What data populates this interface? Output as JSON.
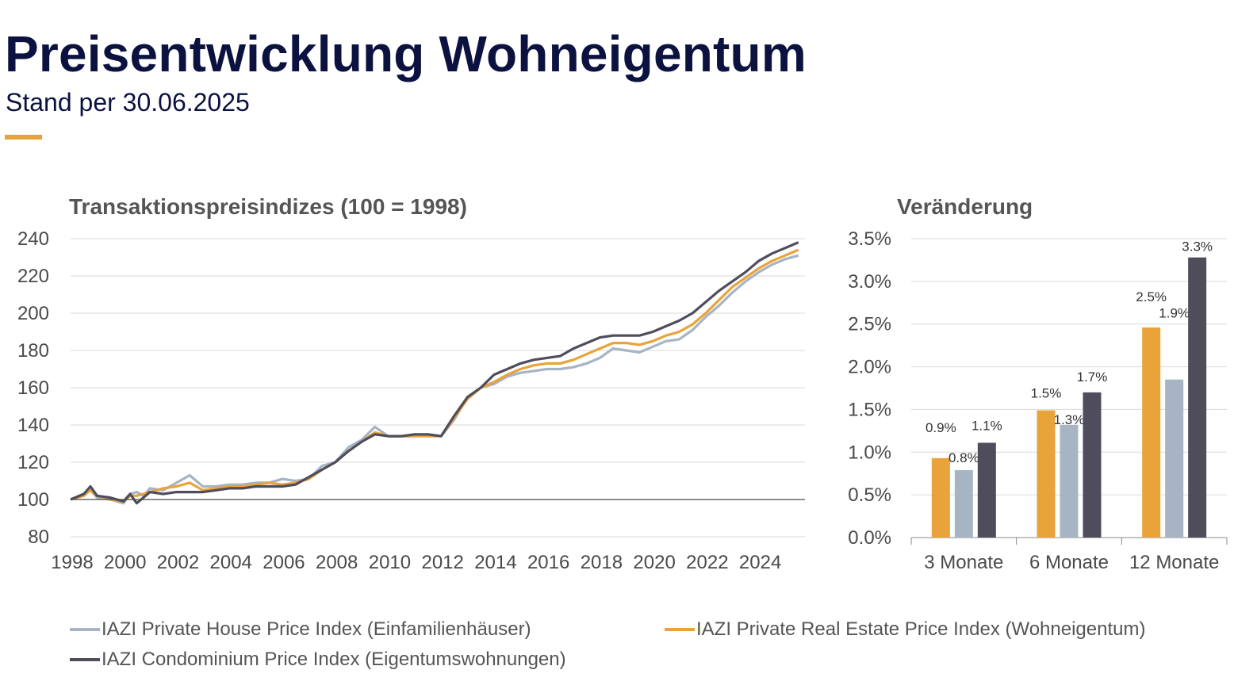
{
  "header": {
    "title": "Preisentwicklung Wohneigentum",
    "subtitle": "Stand per 30.06.2025",
    "accent_color": "#e7a23a"
  },
  "legend": [
    {
      "label": "IAZI Private House Price Index (Einfamilienhäuser)",
      "color": "#a6b4c4"
    },
    {
      "label": "IAZI Private Real Estate Price Index (Wohneigentum)",
      "color": "#e8a33b"
    },
    {
      "label": "IAZI Condominium Price Index (Eigentumswohnungen)",
      "color": "#4f4d5c"
    }
  ],
  "chart_data": [
    {
      "type": "line",
      "title": "Transaktionspreisindizes (100 = 1998)",
      "xlabel": "",
      "ylabel": "",
      "xlim": [
        1998,
        2025.75
      ],
      "ylim": [
        80,
        240
      ],
      "yticks": [
        80,
        100,
        120,
        140,
        160,
        180,
        200,
        220,
        240
      ],
      "xticks": [
        1998,
        2000,
        2002,
        2004,
        2006,
        2008,
        2010,
        2012,
        2014,
        2016,
        2018,
        2020,
        2022,
        2024
      ],
      "grid": true,
      "reference_line": 100,
      "legend_position": "bottom",
      "series": [
        {
          "name": "IAZI Private House Price Index (Einfamilienhäuser)",
          "color": "#a6b4c4",
          "points": [
            [
              1998,
              100
            ],
            [
              1998.5,
              103
            ],
            [
              1998.75,
              105
            ],
            [
              1999,
              101
            ],
            [
              1999.5,
              100
            ],
            [
              2000,
              98
            ],
            [
              2000.25,
              103
            ],
            [
              2000.5,
              104
            ],
            [
              2000.75,
              102
            ],
            [
              2001,
              106
            ],
            [
              2001.5,
              105
            ],
            [
              2002,
              109
            ],
            [
              2002.5,
              113
            ],
            [
              2003,
              107
            ],
            [
              2003.5,
              107
            ],
            [
              2004,
              108
            ],
            [
              2004.5,
              108
            ],
            [
              2005,
              109
            ],
            [
              2005.5,
              109
            ],
            [
              2006,
              111
            ],
            [
              2006.5,
              110
            ],
            [
              2007,
              111
            ],
            [
              2007.5,
              118
            ],
            [
              2008,
              120
            ],
            [
              2008.5,
              128
            ],
            [
              2009,
              132
            ],
            [
              2009.5,
              139
            ],
            [
              2010,
              134
            ],
            [
              2010.5,
              134
            ],
            [
              2011,
              134
            ],
            [
              2011.5,
              135
            ],
            [
              2012,
              134
            ],
            [
              2012.5,
              143
            ],
            [
              2013,
              155
            ],
            [
              2013.5,
              160
            ],
            [
              2014,
              162
            ],
            [
              2014.5,
              166
            ],
            [
              2015,
              168
            ],
            [
              2015.5,
              169
            ],
            [
              2016,
              170
            ],
            [
              2016.5,
              170
            ],
            [
              2017,
              171
            ],
            [
              2017.5,
              173
            ],
            [
              2018,
              176
            ],
            [
              2018.5,
              181
            ],
            [
              2019,
              180
            ],
            [
              2019.5,
              179
            ],
            [
              2020,
              182
            ],
            [
              2020.5,
              185
            ],
            [
              2021,
              186
            ],
            [
              2021.5,
              191
            ],
            [
              2022,
              198
            ],
            [
              2022.5,
              204
            ],
            [
              2023,
              211
            ],
            [
              2023.5,
              217
            ],
            [
              2024,
              222
            ],
            [
              2024.5,
              226
            ],
            [
              2025,
              229
            ],
            [
              2025.5,
              231
            ]
          ]
        },
        {
          "name": "IAZI Private Real Estate Price Index (Wohneigentum)",
          "color": "#e8a33b",
          "points": [
            [
              1998,
              100
            ],
            [
              1998.5,
              102
            ],
            [
              1998.75,
              105
            ],
            [
              1999,
              102
            ],
            [
              1999.5,
              100
            ],
            [
              2000,
              99
            ],
            [
              2000.25,
              102
            ],
            [
              2000.5,
              102
            ],
            [
              2000.75,
              103
            ],
            [
              2001,
              104
            ],
            [
              2001.5,
              106
            ],
            [
              2002,
              107
            ],
            [
              2002.5,
              109
            ],
            [
              2003,
              105
            ],
            [
              2003.5,
              106
            ],
            [
              2004,
              107
            ],
            [
              2004.5,
              107
            ],
            [
              2005,
              108
            ],
            [
              2005.5,
              109
            ],
            [
              2006,
              108
            ],
            [
              2006.5,
              109
            ],
            [
              2007,
              111
            ],
            [
              2007.5,
              116
            ],
            [
              2008,
              120
            ],
            [
              2008.5,
              126
            ],
            [
              2009,
              131
            ],
            [
              2009.5,
              136
            ],
            [
              2010,
              134
            ],
            [
              2010.5,
              134
            ],
            [
              2011,
              134
            ],
            [
              2011.5,
              134
            ],
            [
              2012,
              134
            ],
            [
              2012.5,
              144
            ],
            [
              2013,
              154
            ],
            [
              2013.5,
              160
            ],
            [
              2014,
              163
            ],
            [
              2014.5,
              167
            ],
            [
              2015,
              170
            ],
            [
              2015.5,
              172
            ],
            [
              2016,
              173
            ],
            [
              2016.5,
              173
            ],
            [
              2017,
              175
            ],
            [
              2017.5,
              178
            ],
            [
              2018,
              181
            ],
            [
              2018.5,
              184
            ],
            [
              2019,
              184
            ],
            [
              2019.5,
              183
            ],
            [
              2020,
              185
            ],
            [
              2020.5,
              188
            ],
            [
              2021,
              190
            ],
            [
              2021.5,
              194
            ],
            [
              2022,
              200
            ],
            [
              2022.5,
              207
            ],
            [
              2023,
              214
            ],
            [
              2023.5,
              219
            ],
            [
              2024,
              224
            ],
            [
              2024.5,
              228
            ],
            [
              2025,
              231
            ],
            [
              2025.5,
              234
            ]
          ]
        },
        {
          "name": "IAZI Condominium Price Index (Eigentumswohnungen)",
          "color": "#4f4d5c",
          "points": [
            [
              1998,
              100
            ],
            [
              1998.5,
              103
            ],
            [
              1998.75,
              107
            ],
            [
              1999,
              102
            ],
            [
              1999.5,
              101
            ],
            [
              2000,
              99
            ],
            [
              2000.25,
              103
            ],
            [
              2000.5,
              98
            ],
            [
              2000.75,
              101
            ],
            [
              2001,
              104
            ],
            [
              2001.5,
              103
            ],
            [
              2002,
              104
            ],
            [
              2002.5,
              104
            ],
            [
              2003,
              104
            ],
            [
              2003.5,
              105
            ],
            [
              2004,
              106
            ],
            [
              2004.5,
              106
            ],
            [
              2005,
              107
            ],
            [
              2005.5,
              107
            ],
            [
              2006,
              107
            ],
            [
              2006.5,
              108
            ],
            [
              2007,
              112
            ],
            [
              2007.5,
              116
            ],
            [
              2008,
              120
            ],
            [
              2008.5,
              126
            ],
            [
              2009,
              131
            ],
            [
              2009.5,
              135
            ],
            [
              2010,
              134
            ],
            [
              2010.5,
              134
            ],
            [
              2011,
              135
            ],
            [
              2011.5,
              135
            ],
            [
              2012,
              134
            ],
            [
              2012.5,
              145
            ],
            [
              2013,
              155
            ],
            [
              2013.5,
              160
            ],
            [
              2014,
              167
            ],
            [
              2014.5,
              170
            ],
            [
              2015,
              173
            ],
            [
              2015.5,
              175
            ],
            [
              2016,
              176
            ],
            [
              2016.5,
              177
            ],
            [
              2017,
              181
            ],
            [
              2017.5,
              184
            ],
            [
              2018,
              187
            ],
            [
              2018.5,
              188
            ],
            [
              2019,
              188
            ],
            [
              2019.5,
              188
            ],
            [
              2020,
              190
            ],
            [
              2020.5,
              193
            ],
            [
              2021,
              196
            ],
            [
              2021.5,
              200
            ],
            [
              2022,
              206
            ],
            [
              2022.5,
              212
            ],
            [
              2023,
              217
            ],
            [
              2023.5,
              222
            ],
            [
              2024,
              228
            ],
            [
              2024.5,
              232
            ],
            [
              2025,
              235
            ],
            [
              2025.5,
              238
            ]
          ]
        }
      ]
    },
    {
      "type": "bar",
      "title": "Veränderung",
      "xlabel": "",
      "ylabel": "",
      "categories": [
        "3 Monate",
        "6 Monate",
        "12 Monate"
      ],
      "ylim": [
        0,
        3.5
      ],
      "yticks": [
        "0.0%",
        "0.5%",
        "1.0%",
        "1.5%",
        "2.0%",
        "2.5%",
        "3.0%",
        "3.5%"
      ],
      "grid": true,
      "series": [
        {
          "color": "#e8a33b",
          "values": [
            0.93,
            1.49,
            2.46
          ],
          "labels": [
            "0.9%",
            "1.5%",
            "2.5%"
          ]
        },
        {
          "color": "#a6b4c4",
          "values": [
            0.79,
            1.32,
            1.85
          ],
          "labels": [
            "0.8%",
            "1.3%",
            "1.9%"
          ]
        },
        {
          "color": "#4f4d5c",
          "values": [
            1.11,
            1.7,
            3.28
          ],
          "labels": [
            "1.1%",
            "1.7%",
            "3.3%"
          ]
        }
      ]
    }
  ]
}
